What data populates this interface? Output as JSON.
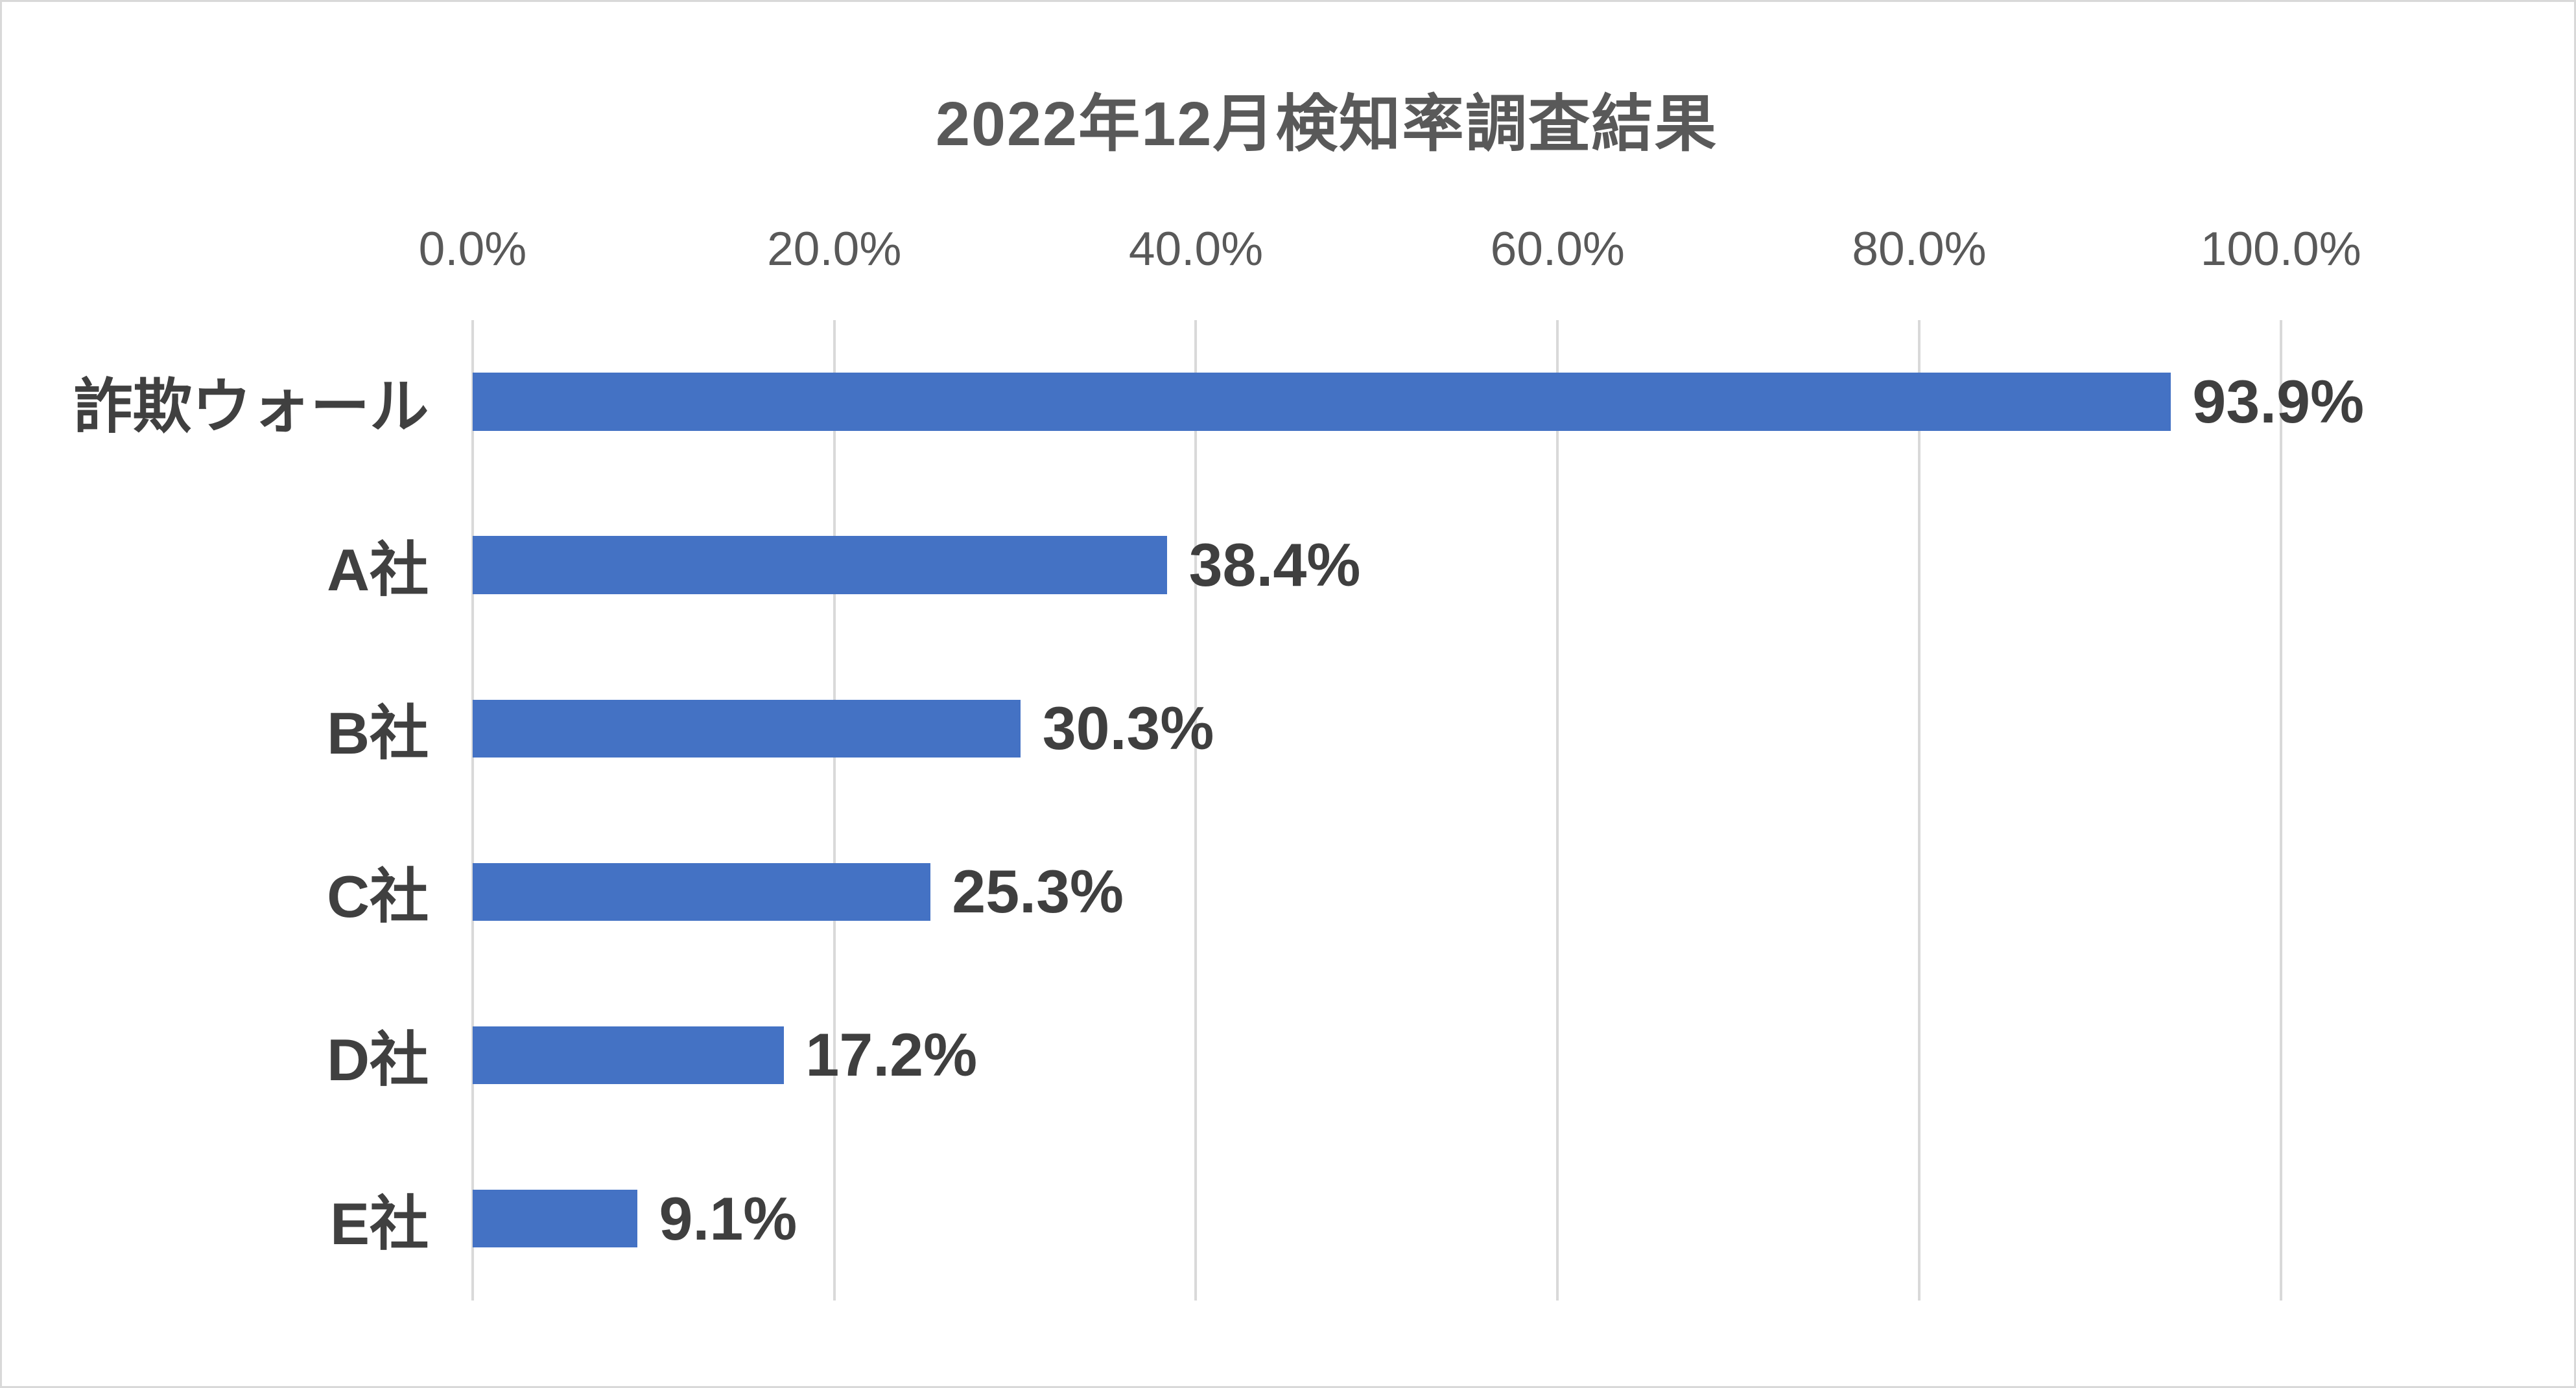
{
  "chart_data": {
    "type": "bar",
    "orientation": "horizontal",
    "title": "2022年12月検知率調査結果",
    "categories": [
      "詐欺ウォール",
      "A社",
      "B社",
      "C社",
      "D社",
      "E社"
    ],
    "values": [
      93.9,
      38.4,
      30.3,
      25.3,
      17.2,
      9.1
    ],
    "value_labels": [
      "93.9%",
      "38.4%",
      "30.3%",
      "25.3%",
      "17.2%",
      "9.1%"
    ],
    "x_tick_labels": [
      "0.0%",
      "20.0%",
      "40.0%",
      "60.0%",
      "80.0%",
      "100.0%"
    ],
    "xlim": [
      0,
      100
    ],
    "xlabel": "",
    "ylabel": "",
    "grid": "vertical-gridlines-only",
    "legend": "none",
    "colors": {
      "bar": "#4472C4",
      "gridline": "#D9D9D9",
      "title_text": "#595959",
      "tick_text": "#595959",
      "category_text": "#404040",
      "value_text": "#3F3F3F",
      "background": "#FFFFFF",
      "canvas_border": "#D9D9D9"
    }
  }
}
